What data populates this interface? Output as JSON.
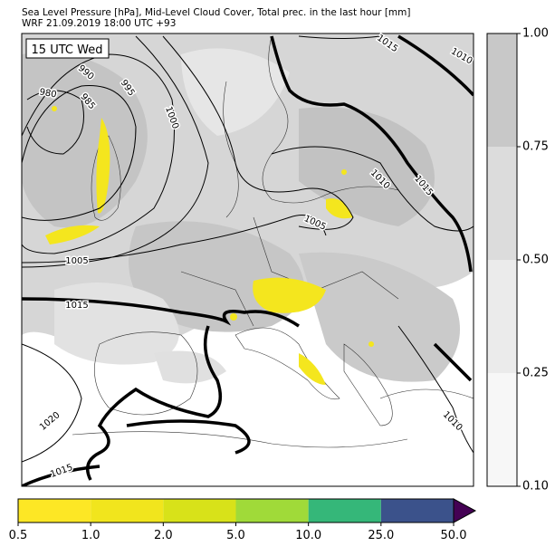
{
  "header": {
    "line1": "Sea Level Pressure [hPa], Mid-Level Cloud Cover, Total prec. in the last hour [mm]",
    "line2": "WRF 21.09.2019 18:00 UTC +93"
  },
  "time_label": "15 UTC Wed",
  "contour_labels": [
    "1015",
    "1010",
    "990",
    "980",
    "985",
    "995",
    "1000",
    "1010",
    "1015",
    "1005",
    "1005",
    "1015",
    "1020",
    "1015",
    "1010"
  ],
  "cloud_colorbar": {
    "colors": [
      "#f7f7f7",
      "#ebebeb",
      "#dcdcdc",
      "#c8c8c8"
    ],
    "ticks": [
      {
        "value": 0.1,
        "label": "0.10"
      },
      {
        "value": 0.25,
        "label": "0.25"
      },
      {
        "value": 0.5,
        "label": "0.50"
      },
      {
        "value": 0.75,
        "label": "0.75"
      },
      {
        "value": 1.0,
        "label": "1.00"
      }
    ]
  },
  "precip_colorbar": {
    "colors": [
      "#fde725",
      "#f1e51d",
      "#d8e219",
      "#a0da39",
      "#35b779",
      "#3b528b",
      "#440154"
    ],
    "ticks": [
      {
        "value": 0.5,
        "label": "0.5"
      },
      {
        "value": 1.0,
        "label": "1.0"
      },
      {
        "value": 2.0,
        "label": "2.0"
      },
      {
        "value": 5.0,
        "label": "5.0"
      },
      {
        "value": 10.0,
        "label": "10.0"
      },
      {
        "value": 25.0,
        "label": "25.0"
      },
      {
        "value": 50.0,
        "label": "50.0"
      }
    ]
  }
}
